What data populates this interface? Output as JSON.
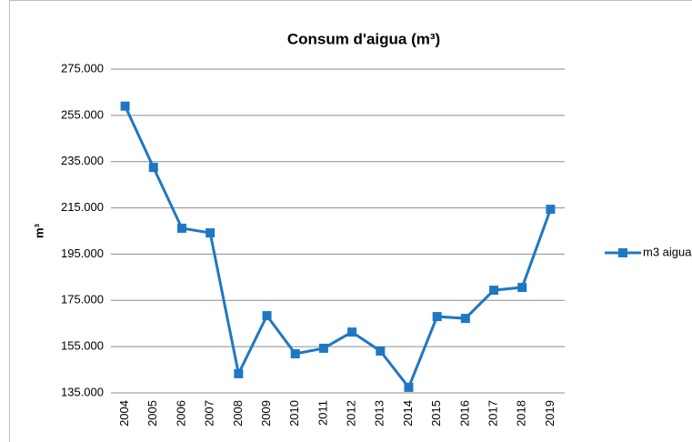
{
  "chart_data": {
    "type": "line",
    "title": "Consum d'aigua (m³)",
    "y_label": "m³",
    "categories": [
      "2004",
      "2005",
      "2006",
      "2007",
      "2008",
      "2009",
      "2010",
      "2011",
      "2012",
      "2013",
      "2014",
      "2015",
      "2016",
      "2017",
      "2018",
      "2019"
    ],
    "series": [
      {
        "name": "m3 aigua",
        "color": "#1f77c4",
        "values": [
          259000,
          232500,
          206200,
          204200,
          143300,
          168400,
          151900,
          154300,
          161300,
          153100,
          137400,
          168000,
          167200,
          179400,
          180600,
          214400
        ]
      }
    ],
    "ylim": [
      135000,
      275000
    ],
    "yticks": [
      {
        "value": 135000,
        "label": "135.000"
      },
      {
        "value": 155000,
        "label": "155.000"
      },
      {
        "value": 175000,
        "label": "175.000"
      },
      {
        "value": 195000,
        "label": "195.000"
      },
      {
        "value": 215000,
        "label": "215.000"
      },
      {
        "value": 235000,
        "label": "235.000"
      },
      {
        "value": 255000,
        "label": "255.000"
      },
      {
        "value": 275000,
        "label": "275.000"
      }
    ],
    "grid": true,
    "legend": "right"
  }
}
